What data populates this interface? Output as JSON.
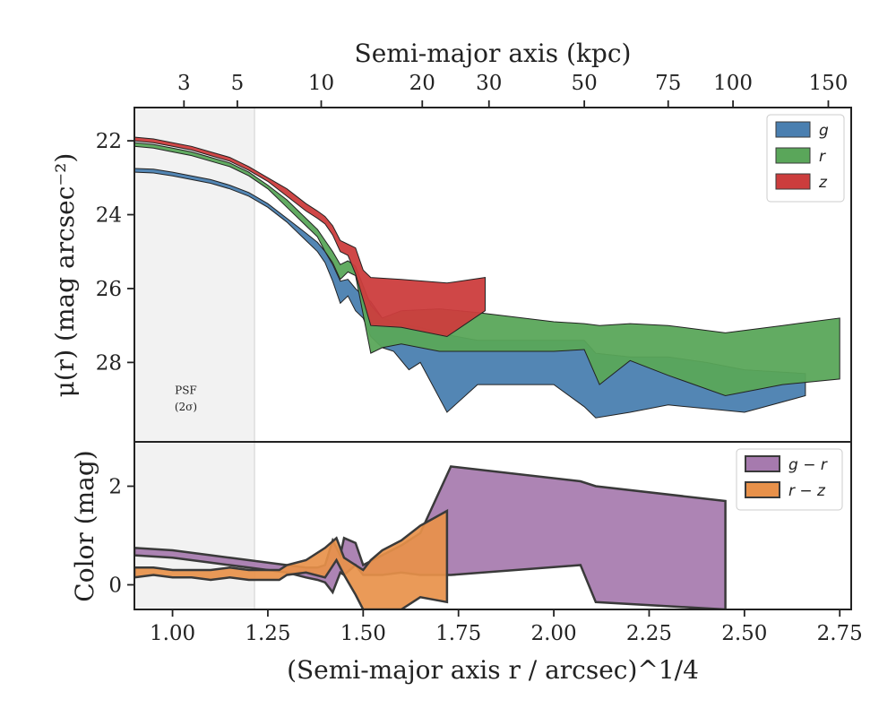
{
  "chart_data": [
    {
      "type": "area",
      "panel": "surface-brightness",
      "title": "",
      "xlabel": "(Semi-major axis r / arcsec)^1/4",
      "ylabel": "μ(r) (mag arcsec⁻²)",
      "xlim": [
        0.9,
        2.78
      ],
      "ylim": [
        21.1,
        30.15
      ],
      "y_inverted": true,
      "yticks": [
        22,
        24,
        26,
        28
      ],
      "ytick_labels": [
        "22",
        "24",
        "26",
        "28"
      ],
      "grid": false,
      "legend_position": "top-right",
      "psf_band": {
        "x": [
          0.9,
          1.215
        ],
        "label_line1": "PSF",
        "label_line2": "(2σ)"
      },
      "top_axis": {
        "label": "Semi-major axis (kpc)",
        "ticks": [
          {
            "label": "3",
            "x": 1.03
          },
          {
            "label": "5",
            "x": 1.17
          },
          {
            "label": "10",
            "x": 1.39
          },
          {
            "label": "20",
            "x": 1.655
          },
          {
            "label": "30",
            "x": 1.83
          },
          {
            "label": "50",
            "x": 2.08
          },
          {
            "label": "75",
            "x": 2.3
          },
          {
            "label": "100",
            "x": 2.47
          },
          {
            "label": "150",
            "x": 2.72
          }
        ]
      },
      "series": [
        {
          "name": "g",
          "color": "#4a7fb0",
          "x": [
            0.9,
            0.95,
            1.0,
            1.05,
            1.1,
            1.15,
            1.2,
            1.25,
            1.3,
            1.35,
            1.38,
            1.4,
            1.42,
            1.44,
            1.46,
            1.48,
            1.5,
            1.52,
            1.55,
            1.58,
            1.62,
            1.65,
            1.72,
            1.8,
            2.0,
            2.08,
            2.11,
            2.2,
            2.3,
            2.4,
            2.5,
            2.66
          ],
          "lower": [
            22.75,
            22.77,
            22.85,
            22.95,
            23.05,
            23.2,
            23.4,
            23.7,
            24.1,
            24.5,
            24.75,
            25.0,
            25.35,
            25.8,
            25.75,
            26.0,
            26.2,
            26.35,
            26.8,
            26.9,
            27.0,
            27.05,
            27.25,
            27.4,
            27.4,
            27.4,
            27.75,
            27.85,
            27.85,
            28.0,
            28.2,
            28.3
          ],
          "upper": [
            22.85,
            22.87,
            22.95,
            23.05,
            23.15,
            23.3,
            23.5,
            23.8,
            24.2,
            24.7,
            25.0,
            25.3,
            25.8,
            26.4,
            26.2,
            26.6,
            26.8,
            27.3,
            27.6,
            27.7,
            28.2,
            28.0,
            29.35,
            28.6,
            28.6,
            29.2,
            29.5,
            29.35,
            29.15,
            29.25,
            29.35,
            28.9
          ]
        },
        {
          "name": "r",
          "color": "#5aa65a",
          "x": [
            0.9,
            0.95,
            1.0,
            1.05,
            1.1,
            1.15,
            1.2,
            1.25,
            1.3,
            1.35,
            1.38,
            1.4,
            1.42,
            1.44,
            1.46,
            1.48,
            1.52,
            1.55,
            1.6,
            1.7,
            1.8,
            2.0,
            2.08,
            2.12,
            2.2,
            2.3,
            2.45,
            2.6,
            2.75
          ],
          "lower": [
            22.05,
            22.1,
            22.2,
            22.3,
            22.45,
            22.6,
            22.85,
            23.2,
            23.6,
            24.1,
            24.4,
            24.7,
            25.0,
            25.35,
            25.25,
            25.4,
            26.45,
            26.8,
            26.6,
            26.55,
            26.65,
            26.9,
            26.95,
            27.0,
            26.95,
            27.0,
            27.2,
            27.0,
            26.8
          ],
          "upper": [
            22.15,
            22.2,
            22.3,
            22.4,
            22.55,
            22.7,
            22.95,
            23.3,
            23.8,
            24.3,
            24.6,
            25.0,
            25.3,
            25.75,
            25.55,
            25.65,
            27.75,
            27.6,
            27.5,
            27.7,
            27.7,
            27.7,
            27.65,
            28.6,
            27.95,
            28.35,
            28.9,
            28.6,
            28.45
          ]
        },
        {
          "name": "z",
          "color": "#cc3d3d",
          "x": [
            0.9,
            0.95,
            1.0,
            1.05,
            1.1,
            1.15,
            1.2,
            1.25,
            1.3,
            1.35,
            1.38,
            1.4,
            1.42,
            1.44,
            1.46,
            1.48,
            1.5,
            1.52,
            1.6,
            1.72,
            1.82
          ],
          "lower": [
            21.9,
            21.95,
            22.05,
            22.15,
            22.3,
            22.45,
            22.7,
            23.0,
            23.3,
            23.7,
            23.9,
            24.05,
            24.3,
            24.7,
            24.8,
            24.9,
            25.5,
            25.7,
            25.75,
            25.85,
            25.7
          ],
          "upper": [
            22.0,
            22.05,
            22.15,
            22.25,
            22.4,
            22.55,
            22.8,
            23.1,
            23.5,
            23.9,
            24.1,
            24.25,
            24.55,
            25.0,
            25.1,
            25.6,
            26.3,
            27.0,
            27.05,
            27.3,
            26.6
          ]
        }
      ]
    },
    {
      "type": "area",
      "panel": "color-profile",
      "title": "",
      "xlabel": "(Semi-major axis r / arcsec)^1/4",
      "ylabel": "Color (mag)",
      "xlim": [
        0.9,
        2.78
      ],
      "ylim": [
        -0.5,
        2.9
      ],
      "xticks": [
        1.0,
        1.25,
        1.5,
        1.75,
        2.0,
        2.25,
        2.5,
        2.75
      ],
      "xtick_labels": [
        "1.00",
        "1.25",
        "1.50",
        "1.75",
        "2.00",
        "2.25",
        "2.50",
        "2.75"
      ],
      "yticks": [
        0,
        2
      ],
      "ytick_labels": [
        "0",
        "2"
      ],
      "grid": false,
      "legend_position": "top-right",
      "series": [
        {
          "name": "g − r",
          "color": "#a67aae",
          "x": [
            0.9,
            1.0,
            1.1,
            1.15,
            1.2,
            1.25,
            1.3,
            1.35,
            1.38,
            1.4,
            1.42,
            1.44,
            1.45,
            1.48,
            1.5,
            1.55,
            1.6,
            1.65,
            1.73,
            2.07,
            2.11,
            2.45
          ],
          "upper": [
            0.75,
            0.7,
            0.6,
            0.55,
            0.5,
            0.45,
            0.4,
            0.35,
            0.35,
            0.4,
            0.9,
            0.6,
            0.95,
            0.85,
            0.4,
            0.6,
            0.8,
            1.05,
            2.4,
            2.1,
            2.0,
            1.7
          ],
          "lower": [
            0.6,
            0.55,
            0.45,
            0.4,
            0.35,
            0.3,
            0.25,
            0.15,
            0.1,
            0.05,
            -0.15,
            0.25,
            0.2,
            0.4,
            0.2,
            0.2,
            0.25,
            0.2,
            0.2,
            0.4,
            -0.35,
            -0.5
          ]
        },
        {
          "name": "r − z",
          "color": "#e8914a",
          "x": [
            0.9,
            0.95,
            1.0,
            1.05,
            1.1,
            1.15,
            1.2,
            1.25,
            1.28,
            1.3,
            1.35,
            1.4,
            1.43,
            1.45,
            1.48,
            1.5,
            1.52,
            1.55,
            1.6,
            1.65,
            1.72
          ],
          "upper": [
            0.35,
            0.35,
            0.3,
            0.3,
            0.3,
            0.35,
            0.3,
            0.3,
            0.3,
            0.4,
            0.5,
            0.75,
            0.95,
            0.55,
            0.4,
            0.3,
            0.5,
            0.7,
            0.9,
            1.2,
            1.5
          ],
          "lower": [
            0.15,
            0.2,
            0.15,
            0.15,
            0.1,
            0.15,
            0.1,
            0.1,
            0.1,
            0.2,
            0.25,
            0.15,
            0.5,
            0.2,
            -0.2,
            -0.5,
            -0.5,
            -0.5,
            -0.5,
            -0.25,
            -0.35
          ]
        }
      ]
    }
  ]
}
